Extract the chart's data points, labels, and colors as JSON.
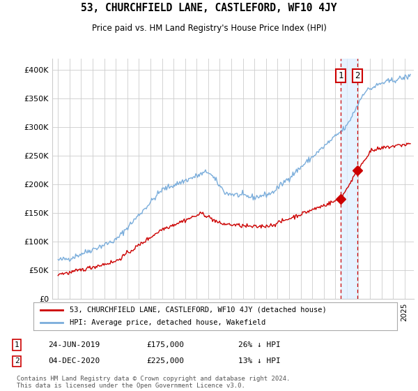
{
  "title": "53, CHURCHFIELD LANE, CASTLEFORD, WF10 4JY",
  "subtitle": "Price paid vs. HM Land Registry's House Price Index (HPI)",
  "legend_line1": "53, CHURCHFIELD LANE, CASTLEFORD, WF10 4JY (detached house)",
  "legend_line2": "HPI: Average price, detached house, Wakefield",
  "sale1_label": "1",
  "sale1_date": "24-JUN-2019",
  "sale1_price": "£175,000",
  "sale1_hpi": "26% ↓ HPI",
  "sale1_year": 2019.48,
  "sale1_value": 175000,
  "sale2_label": "2",
  "sale2_date": "04-DEC-2020",
  "sale2_price": "£225,000",
  "sale2_hpi": "13% ↓ HPI",
  "sale2_year": 2020.92,
  "sale2_value": 225000,
  "footer": "Contains HM Land Registry data © Crown copyright and database right 2024.\nThis data is licensed under the Open Government Licence v3.0.",
  "ylim": [
    0,
    420000
  ],
  "yticks": [
    0,
    50000,
    100000,
    150000,
    200000,
    250000,
    300000,
    350000,
    400000
  ],
  "ytick_labels": [
    "£0",
    "£50K",
    "£100K",
    "£150K",
    "£200K",
    "£250K",
    "£300K",
    "£350K",
    "£400K"
  ],
  "red_color": "#cc0000",
  "blue_color": "#7aaddb",
  "shade_color": "#ddeeff",
  "grid_color": "#cccccc",
  "bg_color": "#ffffff",
  "vline_color": "#cc0000",
  "box_color": "#cc0000"
}
